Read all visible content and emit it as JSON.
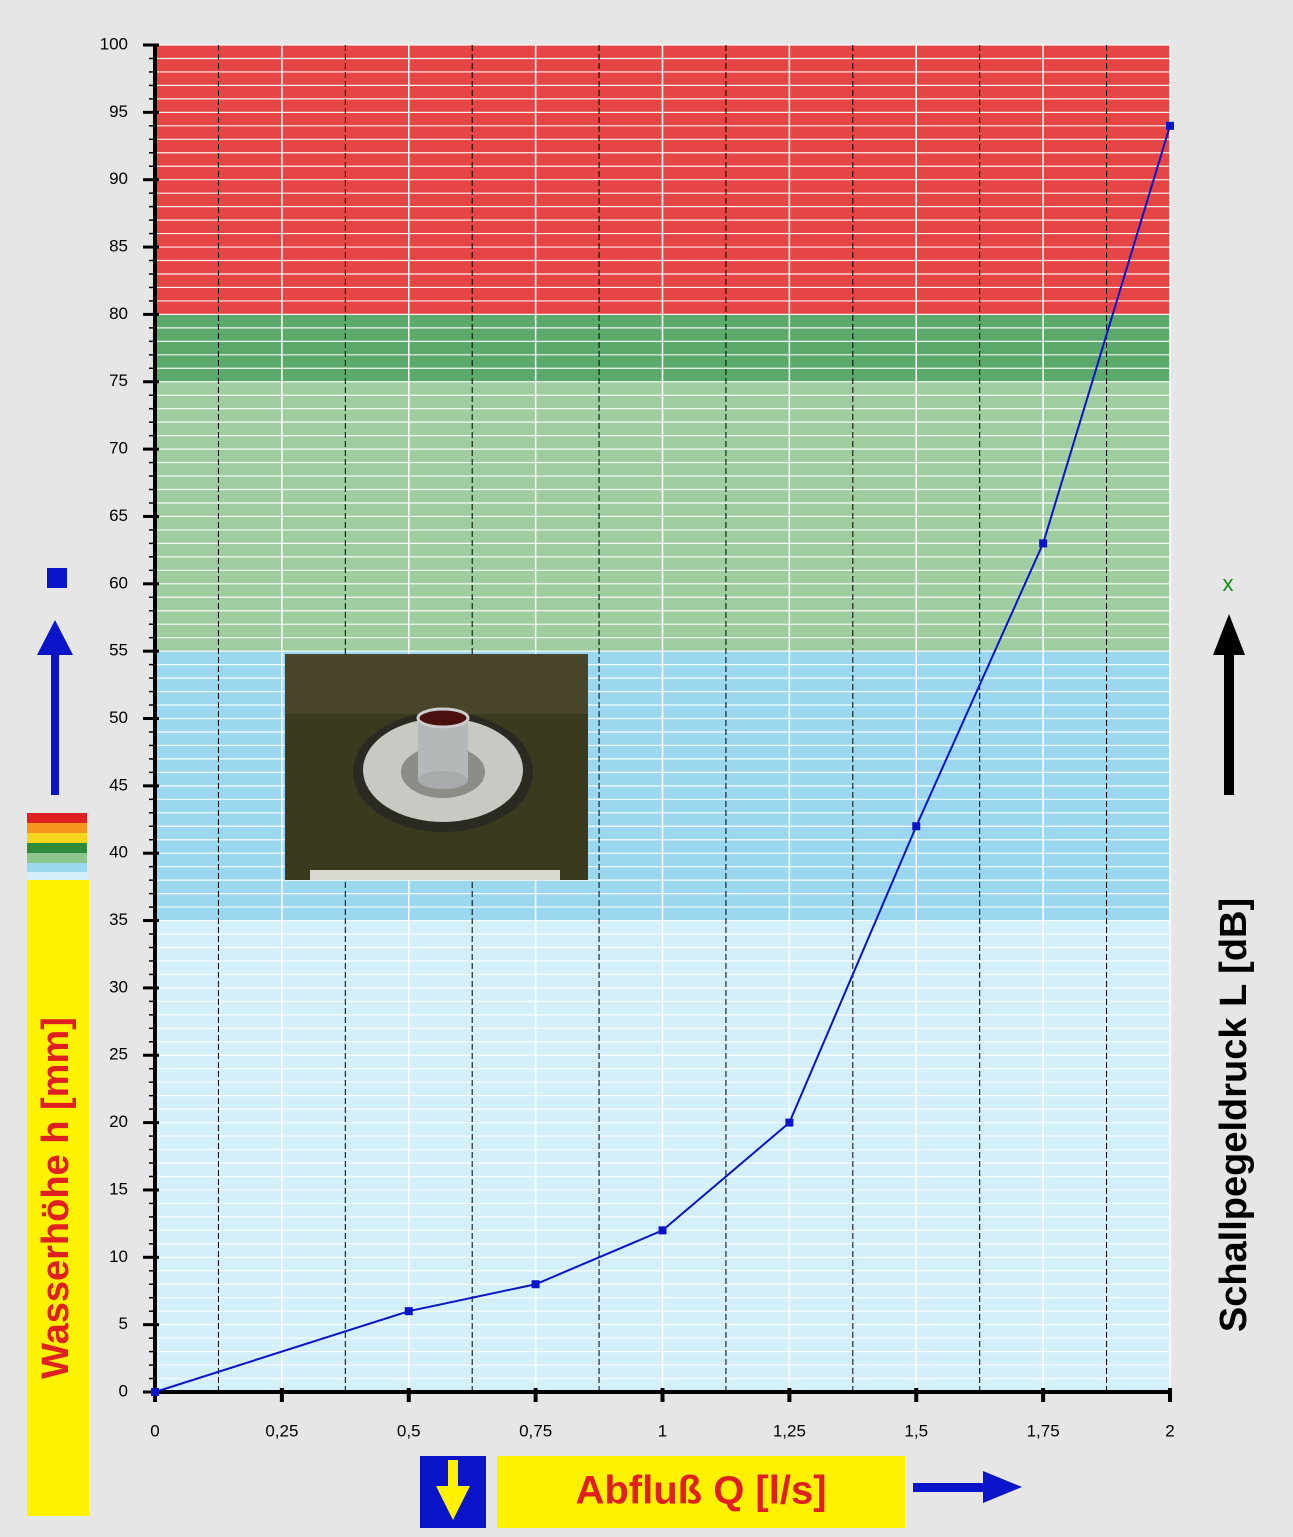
{
  "chart_data": {
    "type": "line",
    "x_label": "Abfluß Q [l/s]",
    "y_label": "Wasserhöhe h [mm]",
    "y2_label": "Schallpegeldruck L [dB]",
    "y2_marker": "x",
    "x": [
      0,
      0.5,
      0.75,
      1,
      1.25,
      1.5,
      1.75,
      2
    ],
    "values": [
      0,
      6,
      8,
      12,
      20,
      42,
      63,
      94
    ],
    "color": "#0a14c8",
    "xlim": [
      0,
      2
    ],
    "ylim": [
      0,
      100
    ],
    "xticks": [
      0,
      {
        "value": 0.25,
        "label": "0,25"
      },
      {
        "value": 0.5,
        "label": "0,5"
      },
      {
        "value": 0.75,
        "label": "0,75"
      },
      1,
      {
        "value": 1.25,
        "label": "1,25"
      },
      {
        "value": 1.5,
        "label": "1,5"
      },
      {
        "value": 1.75,
        "label": "1,75"
      },
      2
    ],
    "yticks": [
      0,
      5,
      10,
      15,
      20,
      25,
      30,
      35,
      40,
      45,
      50,
      55,
      60,
      65,
      70,
      75,
      80,
      85,
      90,
      95,
      100
    ],
    "bands": [
      {
        "from": 0,
        "to": 35,
        "color": "#d3effa"
      },
      {
        "from": 35,
        "to": 55,
        "color": "#9bd8f0"
      },
      {
        "from": 55,
        "to": 75,
        "color": "#9fcd9f"
      },
      {
        "from": 75,
        "to": 80,
        "color": "#5ca96c"
      },
      {
        "from": 80,
        "to": 100,
        "color": "#e64545"
      }
    ],
    "grid": true
  }
}
